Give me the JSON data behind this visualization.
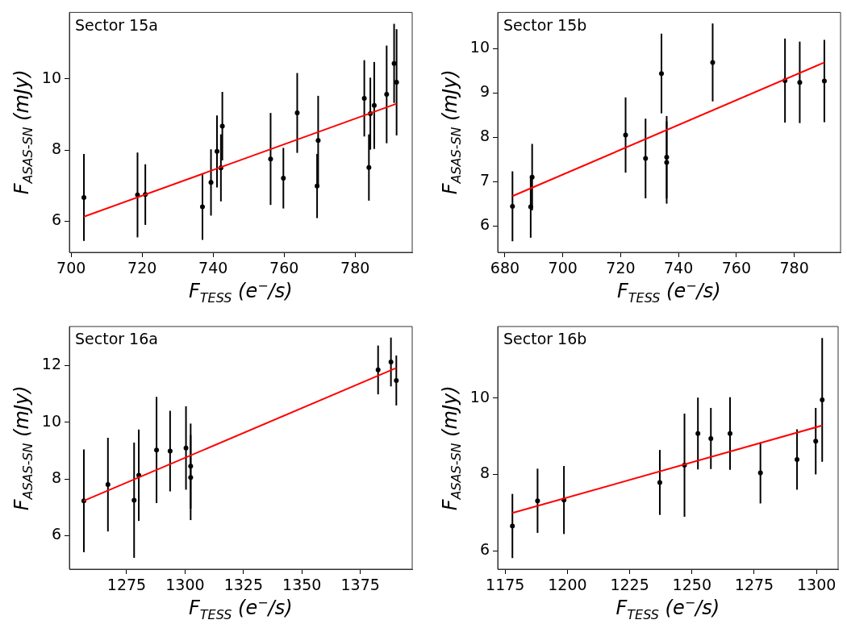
{
  "chart_data": [
    {
      "type": "scatter",
      "xlabel": "F$_{TESS}$ (e$^{−}$/s)",
      "ylabel": "F$_{ASAS-SN}$ (mJy)",
      "annotations": [
        "Sector 15a"
      ],
      "xlim": [
        699.5,
        796.1
      ],
      "ylim": [
        5.13,
        11.86
      ],
      "xticks": [
        700,
        720,
        740,
        760,
        780
      ],
      "yticks": [
        6,
        8,
        10
      ],
      "series": [
        {
          "type": "scatter",
          "marker": "circle",
          "color": "#000000",
          "x": [
            703.6,
            718.7,
            720.9,
            737.0,
            739.4,
            741.1,
            742.2,
            742.6,
            756.2,
            759.8,
            763.7,
            769.3,
            769.6,
            782.6,
            783.9,
            784.3,
            785.4,
            788.9,
            791.0,
            791.7
          ],
          "values": [
            6.67,
            6.74,
            6.75,
            6.41,
            7.09,
            7.96,
            7.5,
            8.67,
            7.75,
            7.21,
            9.04,
            6.99,
            8.27,
            9.45,
            7.51,
            9.02,
            9.25,
            9.56,
            10.43,
            9.9
          ],
          "errors": [
            1.22,
            1.19,
            0.85,
            0.93,
            0.93,
            1.01,
            0.94,
            0.96,
            1.29,
            0.85,
            1.12,
            0.9,
            1.25,
            1.07,
            0.93,
            1.01,
            1.22,
            1.37,
            1.11,
            1.49
          ]
        },
        {
          "type": "line",
          "marker": "none",
          "color": "#ff0000",
          "x": [
            703.6,
            791.7
          ],
          "values": [
            6.13,
            9.3
          ]
        }
      ]
    },
    {
      "type": "scatter",
      "xlabel": "F$_{TESS}$ (e$^{−}$/s)",
      "ylabel": "F$_{ASAS-SN}$ (mJy)",
      "annotations": [
        "Sector 15b"
      ],
      "xlim": [
        677.5,
        796.0
      ],
      "ylim": [
        5.4,
        10.82
      ],
      "xticks": [
        680,
        700,
        720,
        740,
        760,
        780
      ],
      "yticks": [
        6,
        7,
        8,
        9,
        10
      ],
      "series": [
        {
          "type": "scatter",
          "marker": "circle",
          "color": "#000000",
          "x": [
            682.6,
            688.9,
            689.4,
            721.7,
            728.6,
            734.1,
            735.9,
            735.9,
            751.8,
            776.8,
            781.9,
            790.4
          ],
          "values": [
            6.44,
            6.43,
            7.1,
            8.05,
            7.52,
            9.44,
            7.55,
            7.43,
            9.69,
            9.28,
            9.24,
            9.27
          ],
          "errors": [
            0.79,
            0.7,
            0.75,
            0.85,
            0.9,
            0.9,
            0.93,
            0.93,
            0.88,
            0.95,
            0.92,
            0.93
          ]
        },
        {
          "type": "line",
          "marker": "none",
          "color": "#ff0000",
          "x": [
            682.6,
            790.4
          ],
          "values": [
            6.67,
            9.69
          ]
        }
      ]
    },
    {
      "type": "scatter",
      "xlabel": "F$_{TESS}$ (e$^{−}$/s)",
      "ylabel": "F$_{ASAS-SN}$ (mJy)",
      "annotations": [
        "Sector 16a"
      ],
      "xlim": [
        1250.5,
        1397.2
      ],
      "ylim": [
        4.82,
        13.37
      ],
      "xticks": [
        1275,
        1300,
        1325,
        1350,
        1375
      ],
      "yticks": [
        6,
        8,
        10,
        12
      ],
      "series": [
        {
          "type": "scatter",
          "marker": "circle",
          "color": "#000000",
          "x": [
            1256.7,
            1267.0,
            1278.2,
            1280.2,
            1287.8,
            1293.6,
            1300.4,
            1302.4,
            1302.4,
            1382.6,
            1388.1,
            1390.4
          ],
          "values": [
            7.23,
            7.8,
            7.25,
            8.13,
            9.02,
            8.98,
            9.09,
            8.45,
            8.05,
            11.84,
            12.12,
            11.47
          ],
          "errors": [
            1.81,
            1.65,
            2.03,
            1.61,
            1.87,
            1.42,
            1.47,
            1.5,
            1.5,
            0.86,
            0.86,
            0.88
          ]
        },
        {
          "type": "line",
          "marker": "none",
          "color": "#ff0000",
          "x": [
            1256.7,
            1390.4
          ],
          "values": [
            7.23,
            11.91
          ]
        }
      ]
    },
    {
      "type": "scatter",
      "xlabel": "F$_{TESS}$ (e$^{−}$/s)",
      "ylabel": "F$_{ASAS-SN}$ (mJy)",
      "annotations": [
        "Sector 16b"
      ],
      "xlim": [
        1172.0,
        1308.7
      ],
      "ylim": [
        5.52,
        11.87
      ],
      "xticks": [
        1175,
        1200,
        1225,
        1250,
        1275,
        1300
      ],
      "yticks": [
        6,
        8,
        10
      ],
      "series": [
        {
          "type": "scatter",
          "marker": "circle",
          "color": "#000000",
          "x": [
            1177.9,
            1188.0,
            1198.6,
            1237.1,
            1247.0,
            1252.4,
            1257.6,
            1265.3,
            1277.5,
            1292.2,
            1299.7,
            1302.3
          ],
          "values": [
            6.65,
            7.31,
            7.33,
            7.79,
            8.24,
            9.07,
            8.94,
            9.07,
            8.04,
            8.39,
            8.87,
            9.95
          ],
          "errors": [
            0.84,
            0.84,
            0.89,
            0.85,
            1.35,
            0.94,
            0.8,
            0.95,
            0.8,
            0.79,
            0.87,
            1.62
          ]
        },
        {
          "type": "line",
          "marker": "none",
          "color": "#ff0000",
          "x": [
            1177.9,
            1302.3
          ],
          "values": [
            6.99,
            9.28
          ]
        }
      ]
    }
  ]
}
